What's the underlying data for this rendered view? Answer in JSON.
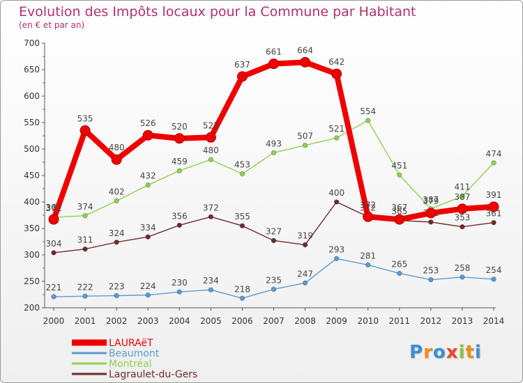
{
  "header": {
    "title": "Evolution des Impôts locaux pour la Commune par Habitant",
    "subtitle": "(en € et par an)"
  },
  "logo": {
    "text": "Proxiti",
    "letters": [
      "P",
      "r",
      "o",
      "x",
      "i",
      "t",
      "i"
    ],
    "colors": [
      "#3b8fd6",
      "#f08a1c",
      "#3b8fd6",
      "#e8452c",
      "#8cc43a",
      "#f08a1c",
      "#3b8fd6"
    ]
  },
  "chart_data": {
    "type": "line",
    "title": "Evolution des Impôts locaux pour la Commune par Habitant",
    "subtitle": "(en € et par an)",
    "xlabel": "",
    "ylabel": "",
    "x": [
      "2000",
      "2001",
      "2002",
      "2003",
      "2004",
      "2005",
      "2006",
      "2007",
      "2008",
      "2009",
      "2010",
      "2011",
      "2012",
      "2013",
      "2014"
    ],
    "ylim": [
      200,
      700
    ],
    "yticks": [
      200,
      250,
      300,
      350,
      400,
      450,
      500,
      550,
      600,
      650,
      700
    ],
    "grid": false,
    "legend_position": "bottom-left",
    "series": [
      {
        "name": "LAURAëT",
        "color": "#ee0000",
        "emphasis": "bold",
        "values": [
          367,
          535,
          480,
          526,
          520,
          522,
          637,
          661,
          664,
          642,
          372,
          367,
          379,
          387,
          391
        ],
        "labels": [
          "367",
          "535",
          "480",
          "526",
          "520",
          "522",
          "637",
          "661",
          "664",
          "642",
          "372",
          "367",
          "379",
          "387",
          "391"
        ]
      },
      {
        "name": "Beaumont",
        "color": "#5b9ad0",
        "emphasis": "normal",
        "values": [
          221,
          222,
          223,
          224,
          230,
          234,
          218,
          235,
          247,
          293,
          281,
          265,
          253,
          258,
          254
        ],
        "labels": [
          "221",
          "222",
          "223",
          "224",
          "230",
          "234",
          "218",
          "235",
          "247",
          "293",
          "281",
          "265",
          "253",
          "258",
          "254"
        ]
      },
      {
        "name": "Montréal",
        "color": "#8fd14f",
        "emphasis": "normal",
        "values": [
          371,
          374,
          402,
          432,
          459,
          480,
          453,
          493,
          507,
          521,
          554,
          451,
          387,
          411,
          474
        ],
        "labels": [
          "371",
          "374",
          "402",
          "432",
          "459",
          "480",
          "453",
          "493",
          "507",
          "521",
          "554",
          "451",
          "387",
          "411",
          "474"
        ]
      },
      {
        "name": "Lagraulet-du-Gers",
        "color": "#6e2a2a",
        "emphasis": "normal",
        "values": [
          304,
          311,
          324,
          334,
          356,
          372,
          355,
          327,
          319,
          400,
          372,
          365,
          362,
          353,
          361
        ],
        "labels": [
          "304",
          "311",
          "324",
          "334",
          "356",
          "372",
          "355",
          "327",
          "319",
          "400",
          "372",
          "365",
          "362",
          "353",
          "361"
        ]
      }
    ]
  }
}
